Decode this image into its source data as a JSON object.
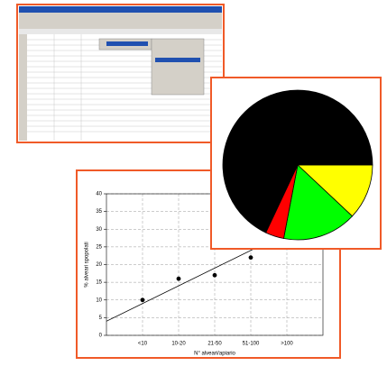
{
  "chart_data": [
    {
      "type": "pie",
      "values": [
        12,
        16,
        4,
        68
      ],
      "colors": [
        "#ffff00",
        "#00ff00",
        "#ff0000",
        "#000000"
      ]
    },
    {
      "type": "scatter",
      "y_label": "% alveari spopolati",
      "x_label": "N° alveari/apiario",
      "categories": [
        "<10",
        "10-20",
        "21-50",
        "51-100",
        ">100"
      ],
      "values": [
        10,
        16,
        17,
        22,
        null
      ],
      "trendline": {
        "x": [
          0,
          6
        ],
        "y": [
          4,
          34
        ]
      },
      "xlim": [
        0,
        6
      ],
      "ylim": [
        0,
        40
      ],
      "yticks": [
        0,
        5,
        10,
        15,
        20,
        25,
        30,
        35,
        40
      ],
      "grid": true,
      "color": "#000000"
    }
  ]
}
